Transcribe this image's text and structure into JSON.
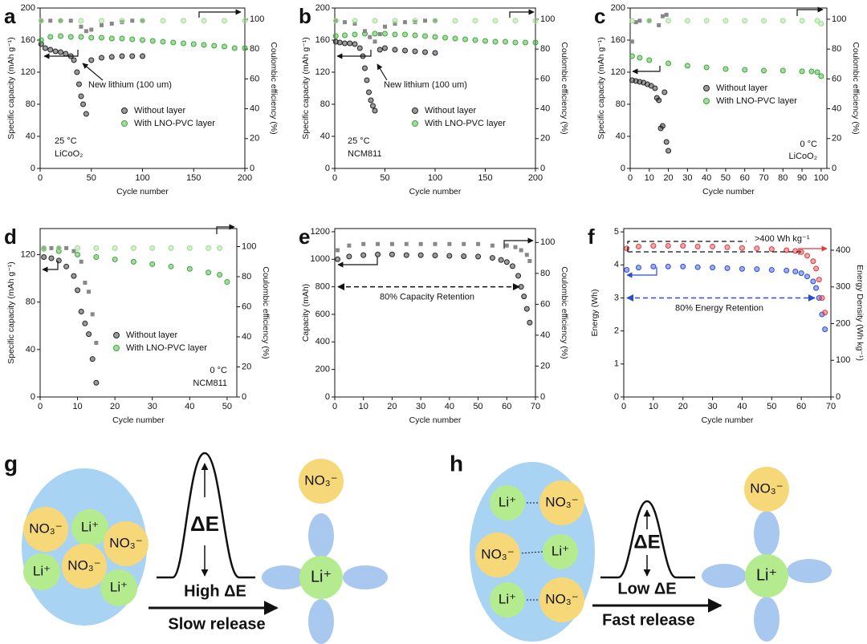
{
  "chart_data": [
    {
      "panel": "a",
      "type": "scatter",
      "xlabel": "Cycle number",
      "ylabel": "Specific capacity (mAh g⁻¹)",
      "y2label": "Coulombic efficiency (%)",
      "xlim": [
        0,
        200
      ],
      "xticks": [
        0,
        50,
        100,
        150,
        200
      ],
      "ylim": [
        0,
        200
      ],
      "yticks": [
        0,
        40,
        80,
        120,
        160,
        200
      ],
      "y2lim": [
        0,
        107.5
      ],
      "y2ticks": [
        0,
        20,
        40,
        60,
        80,
        100
      ],
      "legend": "center right",
      "annotations": [
        "New lithium (100 um)",
        "25 °C",
        "LiCoO₂"
      ],
      "series": [
        {
          "name": "Without layer",
          "color": "#222222",
          "marker": "circle",
          "x": [
            1,
            5,
            10,
            15,
            20,
            25,
            30,
            33,
            36,
            38,
            40,
            42,
            45,
            50,
            60,
            70,
            80,
            90,
            100
          ],
          "values": [
            155,
            150,
            148,
            146,
            145,
            143,
            140,
            135,
            120,
            105,
            90,
            80,
            68,
            135,
            138,
            139,
            140,
            140,
            140
          ]
        },
        {
          "name": "With LNO-PVC layer",
          "color": "#3aaa35",
          "marker": "circle",
          "x": [
            1,
            10,
            20,
            30,
            40,
            50,
            60,
            70,
            80,
            90,
            100,
            110,
            120,
            130,
            140,
            150,
            160,
            170,
            180,
            190,
            200
          ],
          "values": [
            160,
            164,
            165,
            164,
            164,
            163,
            163,
            162,
            162,
            161,
            160,
            159,
            158,
            157,
            156,
            155,
            154,
            153,
            152,
            150,
            150
          ]
        },
        {
          "color": "#888888",
          "marker": "square",
          "axis": "y2",
          "x": [
            1,
            10,
            20,
            30,
            40,
            45,
            50,
            60,
            70,
            80,
            90,
            100
          ],
          "values": [
            99,
            99,
            99,
            99,
            95,
            92,
            93,
            96,
            97,
            98,
            99,
            99
          ]
        },
        {
          "color": "#9edc8f",
          "marker": "circle",
          "axis": "y2",
          "x": [
            1,
            20,
            40,
            60,
            80,
            100,
            120,
            140,
            160,
            180,
            200
          ],
          "values": [
            99,
            99,
            99,
            99,
            99,
            99,
            99,
            99,
            99,
            99,
            99
          ]
        }
      ]
    },
    {
      "panel": "b",
      "type": "scatter",
      "xlabel": "Cycle number",
      "ylabel": "Specific capacity (mAh g⁻¹)",
      "y2label": "Coulombic efficiency (%)",
      "xlim": [
        0,
        200
      ],
      "xticks": [
        0,
        50,
        100,
        150,
        200
      ],
      "ylim": [
        0,
        200
      ],
      "yticks": [
        0,
        40,
        80,
        120,
        160,
        200
      ],
      "y2lim": [
        0,
        107.5
      ],
      "y2ticks": [
        0,
        20,
        40,
        60,
        80,
        100
      ],
      "legend": "center right",
      "annotations": [
        "New lithium (100 um)",
        "25 °C",
        "NCM811"
      ],
      "series": [
        {
          "name": "Without layer",
          "color": "#222222",
          "marker": "circle",
          "x": [
            1,
            5,
            10,
            15,
            20,
            25,
            28,
            30,
            32,
            34,
            36,
            38,
            40,
            45,
            50,
            60,
            70,
            80,
            90,
            100
          ],
          "values": [
            158,
            157,
            156,
            156,
            155,
            150,
            140,
            125,
            110,
            95,
            85,
            78,
            72,
            148,
            150,
            148,
            147,
            146,
            145,
            144
          ]
        },
        {
          "name": "With LNO-PVC layer",
          "color": "#3aaa35",
          "marker": "circle",
          "x": [
            1,
            10,
            20,
            30,
            40,
            50,
            60,
            70,
            80,
            90,
            100,
            110,
            120,
            130,
            140,
            150,
            160,
            170,
            180,
            190,
            200
          ],
          "values": [
            165,
            166,
            167,
            168,
            168,
            168,
            167,
            167,
            166,
            165,
            164,
            163,
            162,
            161,
            160,
            159,
            158,
            158,
            157,
            157,
            157
          ]
        },
        {
          "color": "#888888",
          "marker": "square",
          "axis": "y2",
          "x": [
            1,
            10,
            20,
            30,
            35,
            40,
            45,
            50,
            60,
            70,
            80,
            90,
            100
          ],
          "values": [
            99,
            98,
            97,
            92,
            88,
            85,
            90,
            95,
            97,
            98,
            98,
            99,
            99
          ]
        },
        {
          "color": "#9edc8f",
          "marker": "circle",
          "axis": "y2",
          "x": [
            1,
            20,
            40,
            60,
            80,
            100,
            120,
            140,
            160,
            180,
            200
          ],
          "values": [
            99,
            99,
            99,
            99,
            99,
            99,
            99,
            99,
            99,
            99,
            99
          ]
        }
      ]
    },
    {
      "panel": "c",
      "type": "scatter",
      "xlabel": "Cycle number",
      "ylabel": "Specific capacity (mAh g⁻¹)",
      "y2label": "Coulombic efficiency (%)",
      "xlim": [
        0,
        103
      ],
      "xticks": [
        0,
        10,
        20,
        30,
        40,
        50,
        60,
        70,
        80,
        90,
        100
      ],
      "ylim": [
        0,
        200
      ],
      "yticks": [
        0,
        40,
        80,
        120,
        160,
        200
      ],
      "y2lim": [
        0,
        107.5
      ],
      "y2ticks": [
        0,
        20,
        40,
        60,
        80,
        100
      ],
      "legend": "upper right",
      "annotations": [
        "0 °C",
        "LiCoO₂"
      ],
      "series": [
        {
          "name": "Without layer",
          "color": "#222222",
          "marker": "circle",
          "x": [
            1,
            3,
            5,
            7,
            9,
            11,
            13,
            14,
            15,
            16,
            17,
            18,
            19,
            20
          ],
          "values": [
            110,
            109,
            108,
            107,
            105,
            103,
            100,
            88,
            85,
            50,
            53,
            95,
            33,
            22
          ]
        },
        {
          "name": "With LNO-PVC layer",
          "color": "#3aaa35",
          "marker": "circle",
          "x": [
            1,
            5,
            10,
            20,
            30,
            40,
            50,
            60,
            70,
            80,
            90,
            95,
            98,
            100
          ],
          "values": [
            140,
            138,
            135,
            131,
            128,
            126,
            124,
            123,
            122,
            122,
            121,
            121,
            120,
            115
          ]
        },
        {
          "color": "#888888",
          "marker": "square",
          "axis": "y2",
          "x": [
            1,
            3,
            5,
            10,
            15,
            17,
            19
          ],
          "values": [
            85,
            98,
            99,
            99,
            96,
            102,
            103
          ]
        },
        {
          "color": "#9edc8f",
          "marker": "circle",
          "axis": "y2",
          "x": [
            1,
            10,
            20,
            30,
            40,
            50,
            60,
            70,
            80,
            90,
            98,
            100
          ],
          "values": [
            99,
            99,
            99,
            99,
            99,
            99,
            99,
            99,
            99,
            99,
            99,
            97
          ]
        }
      ]
    },
    {
      "panel": "d",
      "type": "scatter",
      "xlabel": "Cycle number",
      "ylabel": "Specific capacity (mAh g⁻¹)",
      "y2label": "Coulombic efficiency (%)",
      "xlim": [
        0,
        52.6
      ],
      "xticks": [
        0,
        10,
        20,
        30,
        40,
        50
      ],
      "ylim": [
        0,
        142
      ],
      "yticks": [
        0,
        40,
        80,
        120
      ],
      "y2lim": [
        0,
        112
      ],
      "y2ticks": [
        0,
        20,
        40,
        60,
        80,
        100
      ],
      "legend": "center right",
      "annotations": [
        "0 °C",
        "NCM811"
      ],
      "series": [
        {
          "name": "Without layer",
          "color": "#222222",
          "marker": "circle",
          "x": [
            1,
            3,
            5,
            7,
            9,
            10,
            11,
            12,
            13,
            14,
            15
          ],
          "values": [
            118,
            117,
            115,
            110,
            102,
            90,
            72,
            62,
            53,
            32,
            12
          ]
        },
        {
          "name": "With LNO-PVC layer",
          "color": "#3aaa35",
          "marker": "circle",
          "x": [
            1,
            5,
            10,
            15,
            20,
            25,
            30,
            35,
            40,
            45,
            48,
            50
          ],
          "values": [
            125,
            123,
            120,
            118,
            116,
            114,
            112,
            110,
            108,
            105,
            103,
            97
          ]
        },
        {
          "color": "#888888",
          "marker": "square",
          "axis": "y2",
          "x": [
            1,
            3,
            5,
            7,
            9,
            11,
            12,
            13,
            14,
            15
          ],
          "values": [
            99,
            99,
            99,
            99,
            97,
            90,
            76,
            70,
            55,
            36
          ]
        },
        {
          "color": "#9edc8f",
          "marker": "circle",
          "axis": "y2",
          "x": [
            1,
            5,
            10,
            15,
            20,
            25,
            30,
            35,
            40,
            45,
            48
          ],
          "values": [
            99,
            99,
            99,
            99,
            99,
            99,
            99,
            99,
            99,
            99,
            99
          ]
        }
      ]
    },
    {
      "panel": "e",
      "type": "scatter",
      "xlabel": "Cycle number",
      "ylabel": "Capacity (mAh)",
      "y2label": "Coulombic efficiency (%)",
      "xlim": [
        0,
        70
      ],
      "xticks": [
        0,
        10,
        20,
        30,
        40,
        50,
        60,
        70
      ],
      "ylim": [
        0,
        1223
      ],
      "yticks": [
        0,
        200,
        400,
        600,
        800,
        1000,
        1200
      ],
      "y2lim": [
        0,
        109
      ],
      "y2ticks": [
        0,
        20,
        40,
        60,
        80,
        100
      ],
      "reference_lines": [
        {
          "value": 800,
          "label": "80% Capacity Retention",
          "color": "#111111"
        }
      ],
      "series": [
        {
          "color": "#222222",
          "marker": "circle",
          "x": [
            1,
            5,
            10,
            15,
            20,
            25,
            30,
            35,
            40,
            45,
            50,
            55,
            58,
            60,
            62,
            64,
            65,
            66,
            67,
            68
          ],
          "values": [
            1000,
            1020,
            1030,
            1035,
            1035,
            1030,
            1030,
            1028,
            1025,
            1022,
            1020,
            1010,
            995,
            980,
            950,
            880,
            800,
            730,
            640,
            540
          ]
        },
        {
          "color": "#888888",
          "marker": "square",
          "axis": "y2",
          "x": [
            1,
            5,
            10,
            15,
            20,
            25,
            30,
            35,
            40,
            45,
            50,
            55,
            60,
            63,
            65,
            67,
            68
          ],
          "values": [
            95,
            98,
            99,
            99,
            99,
            99,
            99,
            99,
            99,
            99,
            99,
            98,
            98,
            97,
            95,
            92,
            88
          ]
        }
      ]
    },
    {
      "panel": "f",
      "type": "scatter",
      "xlabel": "Cycle number",
      "ylabel": "Energy (Wh)",
      "y2label": "Energy Density (Wh kg⁻¹)",
      "xlim": [
        0,
        70
      ],
      "xticks": [
        0,
        10,
        20,
        30,
        40,
        50,
        60,
        70
      ],
      "ylim": [
        0,
        5.1
      ],
      "yticks": [
        0,
        1,
        2,
        3,
        4,
        5
      ],
      "y2lim": [
        0,
        459
      ],
      "y2ticks": [
        0,
        100,
        200,
        300,
        400
      ],
      "annotations": [
        ">400 Wh kg⁻¹"
      ],
      "reference_lines": [
        {
          "value": 3,
          "label": "80% Energy Retention",
          "color": "#2a4bd7"
        }
      ],
      "series": [
        {
          "color": "#2a4bd7",
          "marker": "circle",
          "x": [
            1,
            5,
            10,
            15,
            20,
            25,
            30,
            35,
            40,
            45,
            50,
            55,
            58,
            60,
            62,
            64,
            65,
            66,
            67,
            68
          ],
          "values": [
            3.85,
            3.92,
            3.95,
            3.95,
            3.95,
            3.93,
            3.92,
            3.9,
            3.88,
            3.87,
            3.85,
            3.83,
            3.8,
            3.75,
            3.65,
            3.5,
            3.3,
            3.0,
            2.5,
            2.05
          ]
        },
        {
          "color": "#e0393e",
          "marker": "circle",
          "axis": "y2",
          "x": [
            1,
            5,
            10,
            15,
            20,
            25,
            30,
            35,
            40,
            45,
            50,
            55,
            58,
            60,
            62,
            64,
            65,
            66,
            67,
            68
          ],
          "values": [
            405,
            410,
            412,
            412,
            412,
            410,
            410,
            408,
            406,
            405,
            403,
            400,
            398,
            395,
            385,
            370,
            350,
            320,
            270,
            230
          ]
        }
      ]
    }
  ],
  "diagrams": [
    {
      "panel": "g",
      "ions": [
        "NO₃⁻",
        "Li⁺",
        "NO₃⁻",
        "Li⁺",
        "NO₃⁻",
        "Li⁺"
      ],
      "delta_e": "ΔE",
      "barrier": "High ΔE",
      "process": "Slow release",
      "products": [
        "NO₃⁻",
        "Li⁺"
      ]
    },
    {
      "panel": "h",
      "ions": [
        "Li⁺",
        "NO₃⁻",
        "NO₃⁻",
        "Li⁺",
        "Li⁺",
        "NO₃⁻"
      ],
      "delta_e": "ΔE",
      "barrier": "Low ΔE",
      "process": "Fast release",
      "products": [
        "NO₃⁻",
        "Li⁺"
      ]
    }
  ]
}
